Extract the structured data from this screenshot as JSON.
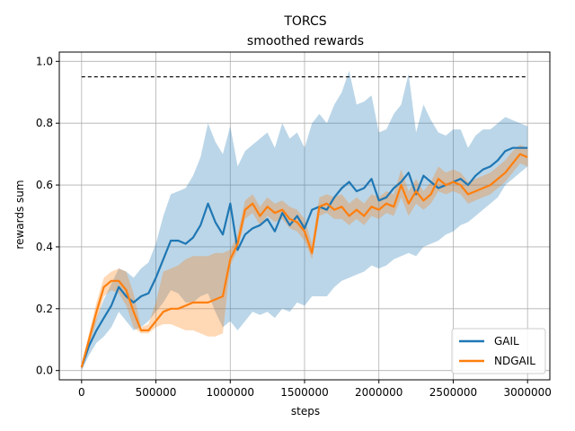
{
  "chart_data": {
    "type": "line",
    "title": "TORCS",
    "subtitle": "smoothed rewards",
    "xlabel": "steps",
    "ylabel": "rewards sum",
    "xlim": [
      -150000,
      3150000
    ],
    "ylim": [
      -0.03,
      1.03
    ],
    "xticks": [
      0,
      500000,
      1000000,
      1500000,
      2000000,
      2500000,
      3000000
    ],
    "xtick_labels": [
      "0",
      "500000",
      "1000000",
      "1500000",
      "2000000",
      "2500000",
      "3000000"
    ],
    "yticks": [
      0.0,
      0.2,
      0.4,
      0.6,
      0.8,
      1.0
    ],
    "ytick_labels": [
      "0.0",
      "0.2",
      "0.4",
      "0.6",
      "0.8",
      "1.0"
    ],
    "grid": true,
    "legend_position": "bottom-right",
    "reference_line": {
      "y": 0.95,
      "x_range": [
        0,
        3000000
      ],
      "style": "dashed",
      "color": "#000000"
    },
    "series": [
      {
        "name": "GAIL",
        "color": "#1f77b4",
        "x": [
          0,
          50000,
          100000,
          150000,
          200000,
          250000,
          300000,
          350000,
          400000,
          450000,
          500000,
          550000,
          600000,
          650000,
          700000,
          750000,
          800000,
          850000,
          900000,
          950000,
          1000000,
          1050000,
          1100000,
          1150000,
          1200000,
          1250000,
          1300000,
          1350000,
          1400000,
          1450000,
          1500000,
          1550000,
          1600000,
          1650000,
          1700000,
          1750000,
          1800000,
          1850000,
          1900000,
          1950000,
          2000000,
          2050000,
          2100000,
          2150000,
          2200000,
          2250000,
          2300000,
          2350000,
          2400000,
          2450000,
          2500000,
          2550000,
          2600000,
          2650000,
          2700000,
          2750000,
          2800000,
          2850000,
          2900000,
          2950000,
          3000000
        ],
        "y": [
          0.01,
          0.08,
          0.13,
          0.17,
          0.21,
          0.27,
          0.24,
          0.22,
          0.24,
          0.25,
          0.3,
          0.36,
          0.42,
          0.42,
          0.41,
          0.43,
          0.47,
          0.54,
          0.48,
          0.44,
          0.54,
          0.39,
          0.44,
          0.46,
          0.47,
          0.49,
          0.45,
          0.51,
          0.47,
          0.5,
          0.46,
          0.52,
          0.53,
          0.52,
          0.56,
          0.59,
          0.61,
          0.58,
          0.59,
          0.62,
          0.55,
          0.56,
          0.59,
          0.61,
          0.64,
          0.57,
          0.63,
          0.61,
          0.59,
          0.6,
          0.61,
          0.62,
          0.6,
          0.63,
          0.65,
          0.66,
          0.68,
          0.71,
          0.72,
          0.72,
          0.72
        ],
        "lower": [
          0.0,
          0.05,
          0.09,
          0.11,
          0.14,
          0.19,
          0.16,
          0.13,
          0.14,
          0.16,
          0.19,
          0.22,
          0.26,
          0.25,
          0.22,
          0.22,
          0.24,
          0.25,
          0.19,
          0.14,
          0.16,
          0.13,
          0.16,
          0.19,
          0.18,
          0.19,
          0.17,
          0.2,
          0.19,
          0.22,
          0.21,
          0.24,
          0.24,
          0.24,
          0.27,
          0.29,
          0.3,
          0.31,
          0.32,
          0.34,
          0.33,
          0.34,
          0.36,
          0.37,
          0.38,
          0.37,
          0.4,
          0.41,
          0.42,
          0.44,
          0.45,
          0.47,
          0.48,
          0.5,
          0.52,
          0.54,
          0.56,
          0.6,
          0.62,
          0.64,
          0.66
        ],
        "upper": [
          0.02,
          0.11,
          0.17,
          0.23,
          0.28,
          0.33,
          0.32,
          0.3,
          0.33,
          0.35,
          0.41,
          0.5,
          0.57,
          0.58,
          0.59,
          0.63,
          0.69,
          0.8,
          0.74,
          0.7,
          0.79,
          0.66,
          0.71,
          0.73,
          0.75,
          0.77,
          0.72,
          0.8,
          0.75,
          0.77,
          0.72,
          0.8,
          0.83,
          0.8,
          0.86,
          0.9,
          0.97,
          0.86,
          0.87,
          0.89,
          0.77,
          0.78,
          0.83,
          0.86,
          0.96,
          0.77,
          0.86,
          0.81,
          0.77,
          0.76,
          0.78,
          0.78,
          0.72,
          0.76,
          0.78,
          0.78,
          0.8,
          0.82,
          0.81,
          0.8,
          0.79
        ]
      },
      {
        "name": "NDGAIL",
        "color": "#ff7f0e",
        "x": [
          0,
          50000,
          100000,
          150000,
          200000,
          250000,
          300000,
          350000,
          400000,
          450000,
          500000,
          550000,
          600000,
          650000,
          700000,
          750000,
          800000,
          850000,
          900000,
          950000,
          1000000,
          1050000,
          1100000,
          1150000,
          1200000,
          1250000,
          1300000,
          1350000,
          1400000,
          1450000,
          1500000,
          1550000,
          1600000,
          1650000,
          1700000,
          1750000,
          1800000,
          1850000,
          1900000,
          1950000,
          2000000,
          2050000,
          2100000,
          2150000,
          2200000,
          2250000,
          2300000,
          2350000,
          2400000,
          2450000,
          2500000,
          2550000,
          2600000,
          2650000,
          2700000,
          2750000,
          2800000,
          2850000,
          2900000,
          2950000,
          3000000
        ],
        "y": [
          0.01,
          0.1,
          0.19,
          0.27,
          0.29,
          0.29,
          0.26,
          0.19,
          0.13,
          0.13,
          0.16,
          0.19,
          0.2,
          0.2,
          0.21,
          0.22,
          0.22,
          0.22,
          0.23,
          0.24,
          0.36,
          0.41,
          0.52,
          0.54,
          0.5,
          0.53,
          0.51,
          0.52,
          0.49,
          0.48,
          0.45,
          0.38,
          0.53,
          0.54,
          0.52,
          0.53,
          0.5,
          0.52,
          0.5,
          0.53,
          0.52,
          0.54,
          0.53,
          0.6,
          0.54,
          0.58,
          0.55,
          0.57,
          0.62,
          0.6,
          0.61,
          0.6,
          0.57,
          0.58,
          0.59,
          0.6,
          0.62,
          0.64,
          0.67,
          0.7,
          0.69
        ],
        "lower": [
          0.0,
          0.08,
          0.16,
          0.24,
          0.26,
          0.25,
          0.21,
          0.14,
          0.12,
          0.12,
          0.14,
          0.15,
          0.15,
          0.14,
          0.13,
          0.13,
          0.12,
          0.11,
          0.11,
          0.12,
          0.34,
          0.39,
          0.49,
          0.51,
          0.47,
          0.5,
          0.48,
          0.49,
          0.46,
          0.45,
          0.42,
          0.36,
          0.5,
          0.51,
          0.49,
          0.49,
          0.47,
          0.49,
          0.47,
          0.5,
          0.49,
          0.51,
          0.5,
          0.56,
          0.5,
          0.54,
          0.52,
          0.54,
          0.58,
          0.57,
          0.58,
          0.57,
          0.54,
          0.55,
          0.56,
          0.57,
          0.59,
          0.61,
          0.64,
          0.67,
          0.66
        ],
        "upper": [
          0.02,
          0.12,
          0.22,
          0.3,
          0.32,
          0.33,
          0.32,
          0.25,
          0.14,
          0.15,
          0.22,
          0.32,
          0.33,
          0.34,
          0.36,
          0.37,
          0.37,
          0.37,
          0.38,
          0.38,
          0.39,
          0.44,
          0.55,
          0.57,
          0.53,
          0.56,
          0.54,
          0.55,
          0.53,
          0.52,
          0.49,
          0.41,
          0.56,
          0.57,
          0.56,
          0.57,
          0.54,
          0.56,
          0.54,
          0.57,
          0.56,
          0.58,
          0.57,
          0.65,
          0.58,
          0.62,
          0.58,
          0.61,
          0.66,
          0.64,
          0.65,
          0.64,
          0.61,
          0.62,
          0.63,
          0.64,
          0.66,
          0.68,
          0.71,
          0.73,
          0.72
        ]
      }
    ]
  }
}
